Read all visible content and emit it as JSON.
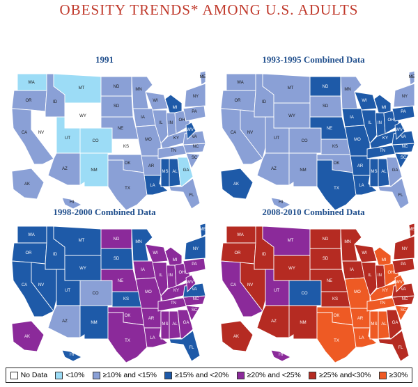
{
  "title": "OBESITY TRENDS* AMONG U.S. ADULTS",
  "colors": {
    "nodata": "#ffffff",
    "lt10": "#9cdcf6",
    "10to15": "#8aa0d6",
    "15to20": "#1e5aa8",
    "20to25": "#8b2a9a",
    "25to30": "#b52b22",
    "ge30": "#ee5a24"
  },
  "legend": [
    {
      "key": "nodata",
      "label": "No Data"
    },
    {
      "key": "lt10",
      "label": "<10%"
    },
    {
      "key": "10to15",
      "label": "≥10% and <15%"
    },
    {
      "key": "15to20",
      "label": "≥15% and <20%"
    },
    {
      "key": "20to25",
      "label": "≥20% and <25%"
    },
    {
      "key": "25to30",
      "label": "≥25% and<30%"
    },
    {
      "key": "ge30",
      "label": "≥30%"
    }
  ],
  "maps": [
    {
      "title": "1991",
      "states": {
        "WA": "lt10",
        "OR": "10to15",
        "CA": "10to15",
        "ID": "10to15",
        "NV": "nodata",
        "MT": "lt10",
        "WY": "nodata",
        "UT": "lt10",
        "AZ": "10to15",
        "CO": "lt10",
        "NM": "lt10",
        "ND": "10to15",
        "SD": "10to15",
        "NE": "10to15",
        "KS": "nodata",
        "OK": "10to15",
        "TX": "10to15",
        "MN": "10to15",
        "IA": "10to15",
        "MO": "10to15",
        "AR": "10to15",
        "LA": "15to20",
        "WI": "10to15",
        "IL": "10to15",
        "MI": "15to20",
        "IN": "10to15",
        "OH": "10to15",
        "KY": "10to15",
        "TN": "10to15",
        "MS": "15to20",
        "AL": "15to20",
        "GA": "lt10",
        "FL": "10to15",
        "SC": "10to15",
        "NC": "10to15",
        "VA": "10to15",
        "WV": "15to20",
        "PA": "10to15",
        "NY": "10to15",
        "ME": "10to15",
        "AK": "10to15",
        "HI": "10to15"
      }
    },
    {
      "title": "1993-1995 Combined Data",
      "states": {
        "WA": "10to15",
        "OR": "10to15",
        "CA": "10to15",
        "ID": "10to15",
        "NV": "10to15",
        "MT": "10to15",
        "WY": "10to15",
        "UT": "10to15",
        "AZ": "10to15",
        "CO": "10to15",
        "NM": "10to15",
        "ND": "15to20",
        "SD": "10to15",
        "NE": "15to20",
        "KS": "10to15",
        "OK": "10to15",
        "TX": "15to20",
        "MN": "10to15",
        "IA": "15to20",
        "MO": "15to20",
        "AR": "15to20",
        "LA": "15to20",
        "WI": "15to20",
        "IL": "15to20",
        "MI": "15to20",
        "IN": "15to20",
        "OH": "15to20",
        "KY": "15to20",
        "TN": "15to20",
        "MS": "15to20",
        "AL": "15to20",
        "GA": "10to15",
        "FL": "10to15",
        "SC": "15to20",
        "NC": "15to20",
        "VA": "15to20",
        "WV": "15to20",
        "PA": "15to20",
        "NY": "10to15",
        "ME": "10to15",
        "AK": "15to20",
        "HI": "10to15"
      }
    },
    {
      "title": "1998-2000 Combined Data",
      "states": {
        "WA": "15to20",
        "OR": "15to20",
        "CA": "15to20",
        "ID": "15to20",
        "NV": "15to20",
        "MT": "15to20",
        "WY": "15to20",
        "UT": "15to20",
        "AZ": "10to15",
        "CO": "10to15",
        "NM": "15to20",
        "ND": "20to25",
        "SD": "15to20",
        "NE": "20to25",
        "KS": "15to20",
        "OK": "20to25",
        "TX": "20to25",
        "MN": "15to20",
        "IA": "20to25",
        "MO": "20to25",
        "AR": "20to25",
        "LA": "20to25",
        "WI": "20to25",
        "IL": "20to25",
        "MI": "20to25",
        "IN": "20to25",
        "OH": "20to25",
        "KY": "20to25",
        "TN": "20to25",
        "MS": "20to25",
        "AL": "20to25",
        "GA": "20to25",
        "FL": "15to20",
        "SC": "20to25",
        "NC": "20to25",
        "VA": "15to20",
        "WV": "20to25",
        "PA": "20to25",
        "NY": "15to20",
        "ME": "15to20",
        "AK": "20to25",
        "HI": "15to20"
      }
    },
    {
      "title": "2008-2010 Combined Data",
      "states": {
        "WA": "25to30",
        "OR": "25to30",
        "CA": "20to25",
        "ID": "25to30",
        "NV": "25to30",
        "MT": "20to25",
        "WY": "25to30",
        "UT": "20to25",
        "AZ": "25to30",
        "CO": "15to20",
        "NM": "25to30",
        "ND": "25to30",
        "SD": "25to30",
        "NE": "25to30",
        "KS": "25to30",
        "OK": "ge30",
        "TX": "ge30",
        "MN": "25to30",
        "IA": "25to30",
        "MO": "ge30",
        "AR": "ge30",
        "LA": "ge30",
        "WI": "25to30",
        "IL": "25to30",
        "MI": "ge30",
        "IN": "25to30",
        "OH": "ge30",
        "KY": "ge30",
        "TN": "ge30",
        "MS": "ge30",
        "AL": "ge30",
        "GA": "25to30",
        "FL": "25to30",
        "SC": "ge30",
        "NC": "25to30",
        "VA": "25to30",
        "WV": "ge30",
        "PA": "25to30",
        "NY": "25to30",
        "ME": "25to30",
        "AK": "25to30",
        "HI": "20to25"
      }
    }
  ]
}
